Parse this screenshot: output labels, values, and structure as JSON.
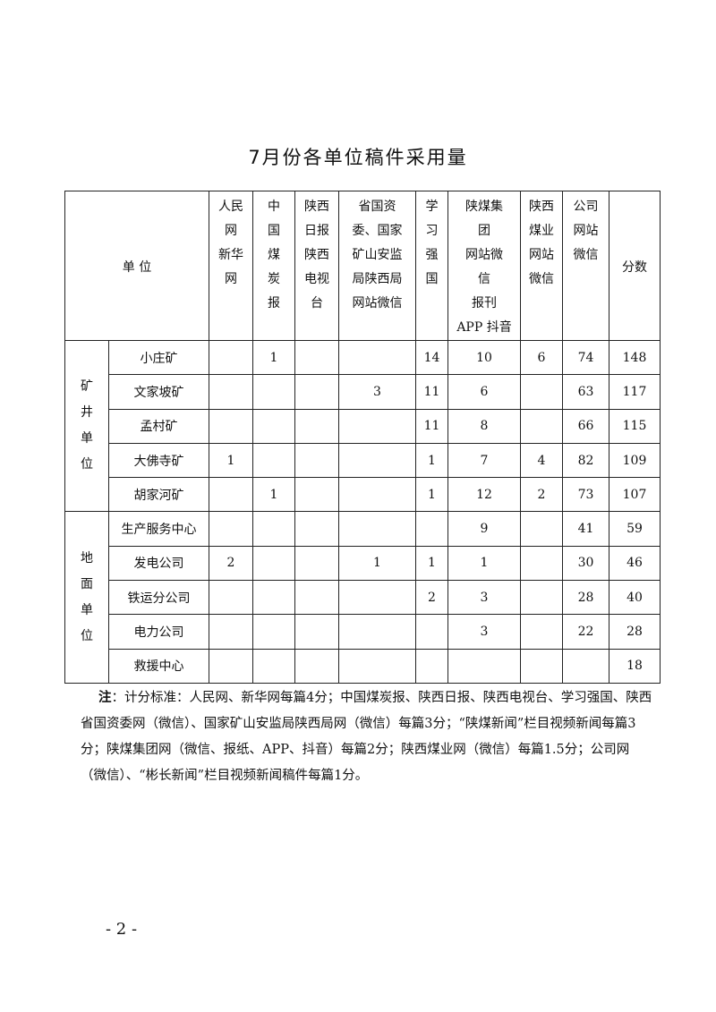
{
  "title": "7月份各单位稿件采用量",
  "header": {
    "unit": "单 位",
    "columns": [
      [
        "人民",
        "网",
        "新华",
        "网"
      ],
      [
        "中",
        "国",
        "煤",
        "炭",
        "报"
      ],
      [
        "陕西",
        "日报",
        "陕西",
        "电视",
        "台"
      ],
      [
        "省国资",
        "委、国家",
        "矿山安监",
        "局陕西局",
        "网站微信"
      ],
      [
        "学",
        "习",
        "强",
        "国"
      ],
      [
        "陕煤集",
        "团",
        "网站微",
        "信",
        "报刊",
        "APP 抖音"
      ],
      [
        "陕西",
        "煤业",
        "网站",
        "微信"
      ],
      [
        "公司",
        "网站",
        "微信"
      ]
    ],
    "score": "分数"
  },
  "groups": [
    {
      "label": [
        "矿",
        "井",
        "单",
        "位"
      ],
      "rows": [
        {
          "name": "小庄矿",
          "cells": [
            "",
            "1",
            "",
            "",
            "14",
            "10",
            "6",
            "74"
          ],
          "score": "148"
        },
        {
          "name": "文家坡矿",
          "cells": [
            "",
            "",
            "",
            "3",
            "11",
            "6",
            "",
            "63"
          ],
          "score": "117"
        },
        {
          "name": "孟村矿",
          "cells": [
            "",
            "",
            "",
            "",
            "11",
            "8",
            "",
            "66"
          ],
          "score": "115"
        },
        {
          "name": "大佛寺矿",
          "cells": [
            "1",
            "",
            "",
            "",
            "1",
            "7",
            "4",
            "82"
          ],
          "score": "109"
        },
        {
          "name": "胡家河矿",
          "cells": [
            "",
            "1",
            "",
            "",
            "1",
            "12",
            "2",
            "73"
          ],
          "score": "107"
        }
      ]
    },
    {
      "label": [
        "地",
        "面",
        "单",
        "位"
      ],
      "rows": [
        {
          "name": "生产服务中心",
          "cells": [
            "",
            "",
            "",
            "",
            "",
            "9",
            "",
            "41"
          ],
          "score": "59"
        },
        {
          "name": "发电公司",
          "cells": [
            "2",
            "",
            "",
            "1",
            "1",
            "1",
            "",
            "30"
          ],
          "score": "46"
        },
        {
          "name": "铁运分公司",
          "cells": [
            "",
            "",
            "",
            "",
            "2",
            "3",
            "",
            "28"
          ],
          "score": "40"
        },
        {
          "name": "电力公司",
          "cells": [
            "",
            "",
            "",
            "",
            "",
            "3",
            "",
            "22"
          ],
          "score": "28"
        },
        {
          "name": "救援中心",
          "cells": [
            "",
            "",
            "",
            "",
            "",
            "",
            "",
            ""
          ],
          "score": "18"
        }
      ]
    }
  ],
  "note": {
    "label": "注",
    "text": "：计分标准：人民网、新华网每篇4分；中国煤炭报、陕西日报、陕西电视台、学习强国、陕西省国资委网（微信）、国家矿山安监局陕西局网（微信）每篇3分；“陕煤新闻”栏目视频新闻每篇3分；陕煤集团网（微信、报纸、APP、抖音）每篇2分；陕西煤业网（微信）每篇1.5分；公司网（微信）、“彬长新闻”栏目视频新闻稿件每篇1分。"
  },
  "page_number": "- 2 -"
}
